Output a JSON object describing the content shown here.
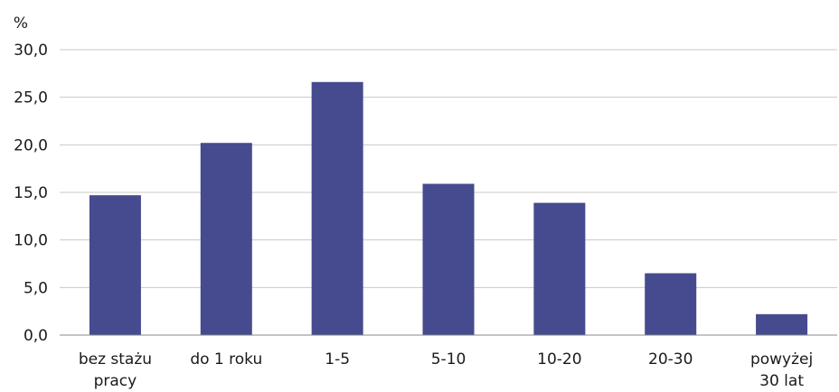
{
  "chart_data": {
    "type": "bar",
    "ylabel": "%",
    "categories": [
      [
        "bez stażu",
        "pracy"
      ],
      [
        "do 1 roku"
      ],
      [
        "1-5"
      ],
      [
        "5-10"
      ],
      [
        "10-20"
      ],
      [
        "20-30"
      ],
      [
        "powyżej",
        "30 lat"
      ]
    ],
    "values": [
      14.7,
      20.2,
      26.6,
      15.9,
      13.9,
      6.5,
      2.2
    ],
    "ylim": [
      0,
      30
    ],
    "yticks": [
      0,
      5,
      10,
      15,
      20,
      25,
      30
    ],
    "ytick_labels": [
      "0,0",
      "5,0",
      "10,0",
      "15,0",
      "20,0",
      "25,0",
      "30,0"
    ],
    "grid": true,
    "legend": "none",
    "bar_color": "#454b8e"
  }
}
